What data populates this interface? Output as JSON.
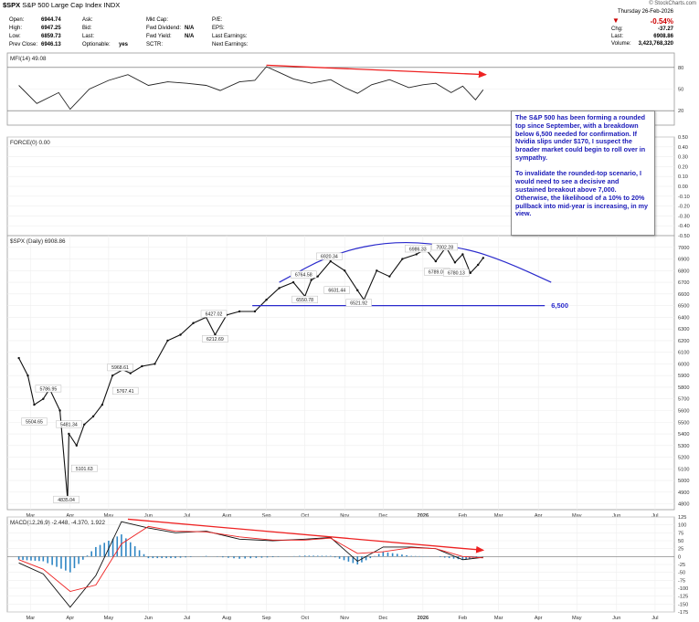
{
  "header": {
    "symbol_line_symbol": "$SPX",
    "symbol_line_desc": "S&P 500 Large Cap Index",
    "symbol_line_exchange": "INDX",
    "copyright": "© StockCharts.com",
    "left_labels": [
      "Open:",
      "High:",
      "Low:",
      "Prev Close:"
    ],
    "left_values": [
      "6944.74",
      "6947.25",
      "6859.73",
      "6946.13"
    ],
    "mid_labels": [
      "Ask:",
      "Bid:",
      "Last:",
      "Optionable:"
    ],
    "mid_values": [
      "",
      "",
      "",
      "yes"
    ],
    "fund_labels": [
      "Mkt Cap:",
      "Fwd Dividend:",
      "Fwd Yield:",
      "SCTR:"
    ],
    "fund_values": [
      "",
      "N/A",
      "N/A",
      ""
    ],
    "earn_labels": [
      "P/E:",
      "EPS:",
      "Last Earnings:",
      "Next Earnings:"
    ],
    "date": "Thursday 26-Feb-2026",
    "change_pct": "-0.54%",
    "chg_label": "Chg:",
    "chg_value": "-37.27",
    "last_label": "Last:",
    "last_value": "6908.86",
    "volume_label": "Volume:",
    "volume_value": "3,423,768,320",
    "down_color": "#cc0000"
  },
  "note": {
    "text": "The S&P 500 has been forming a rounded top since September, with a breakdown below 6,500 needed for confirmation. If Nvidia slips under $170, I suspect the broader market could begin to roll over in sympathy.\n\nTo invalidate the rounded-top scenario, I would need to see a decisive and sustained breakout above 7,000. Otherwise, the likelihood of a 10% to 20% pullback into mid-year is increasing, in my view."
  },
  "chart_data": [
    {
      "type": "line",
      "panel": "mfi",
      "title": "MFI(14) 49.08",
      "ylim": [
        0,
        100
      ],
      "y_ticks": [
        20,
        50,
        80
      ],
      "overbought": 80,
      "oversold": 20,
      "series": [
        {
          "color": "#222222",
          "x": [
            "2025-03-01",
            "2025-03-15",
            "2025-04-01",
            "2025-04-10",
            "2025-04-25",
            "2025-05-10",
            "2025-05-25",
            "2025-06-10",
            "2025-06-25",
            "2025-07-10",
            "2025-07-25",
            "2025-08-05",
            "2025-08-20",
            "2025-09-01",
            "2025-09-10",
            "2025-09-20",
            "2025-10-01",
            "2025-10-15",
            "2025-10-30",
            "2025-11-10",
            "2025-11-20",
            "2025-12-01",
            "2025-12-15",
            "2025-12-30",
            "2026-01-10",
            "2026-01-20",
            "2026-02-01",
            "2026-02-10",
            "2026-02-20",
            "2026-02-26"
          ],
          "y": [
            55,
            30,
            45,
            22,
            50,
            62,
            70,
            55,
            60,
            58,
            55,
            48,
            60,
            62,
            81,
            73,
            64,
            58,
            63,
            52,
            44,
            56,
            63,
            52,
            56,
            58,
            45,
            54,
            35,
            49
          ]
        }
      ],
      "trendline": {
        "x": [
          "2025-09-10",
          "2026-02-28"
        ],
        "y": [
          83,
          70
        ],
        "color": "#ee2222"
      }
    },
    {
      "type": "line",
      "panel": "force",
      "title": "FORCE(0) 0.00",
      "ylim": [
        -0.5,
        0.5
      ],
      "y_ticks": [
        "0.50",
        "0.40",
        "0.30",
        "0.20",
        "0.10",
        "0.00",
        "-0.10",
        "-0.20",
        "-0.30",
        "-0.40",
        "-0.50"
      ],
      "series": []
    },
    {
      "type": "line",
      "panel": "price",
      "title": "$SPX (Daily) 6908.86",
      "ylim": [
        4750,
        7100
      ],
      "y_ticks": [
        4800,
        4900,
        5000,
        5100,
        5200,
        5300,
        5400,
        5500,
        5600,
        5700,
        5800,
        5900,
        6000,
        6100,
        6200,
        6300,
        6400,
        6500,
        6600,
        6700,
        6800,
        6900,
        7000
      ],
      "x_ticks": [
        "Mar",
        "Apr",
        "May",
        "Jun",
        "Jul",
        "Aug",
        "Sep",
        "Oct",
        "Nov",
        "Dec",
        "2026",
        "Feb",
        "Mar",
        "Apr",
        "May",
        "Jun",
        "Jul"
      ],
      "series": [
        {
          "name": "$SPX",
          "color": "#111111",
          "x": [
            "2025-03-01",
            "2025-03-08",
            "2025-03-13",
            "2025-03-20",
            "2025-03-25",
            "2025-04-02",
            "2025-04-08",
            "2025-04-09",
            "2025-04-15",
            "2025-04-21",
            "2025-04-28",
            "2025-05-05",
            "2025-05-13",
            "2025-05-21",
            "2025-05-27",
            "2025-06-05",
            "2025-06-15",
            "2025-06-25",
            "2025-07-05",
            "2025-07-15",
            "2025-07-25",
            "2025-08-01",
            "2025-08-10",
            "2025-08-20",
            "2025-09-01",
            "2025-09-10",
            "2025-09-20",
            "2025-10-01",
            "2025-10-10",
            "2025-10-15",
            "2025-10-20",
            "2025-10-30",
            "2025-11-10",
            "2025-11-20",
            "2025-11-25",
            "2025-12-05",
            "2025-12-15",
            "2025-12-25",
            "2026-01-05",
            "2026-01-12",
            "2026-01-20",
            "2026-01-28",
            "2026-02-04",
            "2026-02-10",
            "2026-02-16",
            "2026-02-22",
            "2026-02-26"
          ],
          "y": [
            6050,
            5900,
            5650,
            5700,
            5785,
            5600,
            4835,
            5400,
            5300,
            5480,
            5550,
            5650,
            5900,
            5950,
            5920,
            5980,
            6000,
            6200,
            6250,
            6350,
            6400,
            6250,
            6420,
            6450,
            6450,
            6550,
            6650,
            6700,
            6580,
            6720,
            6750,
            6880,
            6800,
            6631,
            6550,
            6800,
            6750,
            6900,
            6940,
            6986,
            6880,
            7002,
            6870,
            6940,
            6780,
            6850,
            6908.86
          ]
        }
      ],
      "annotations": [
        {
          "x": "2025-03-13",
          "y": 5504.65,
          "text": "5504.65"
        },
        {
          "x": "2025-03-24",
          "y": 5786.95,
          "text": "5786.95"
        },
        {
          "x": "2025-04-09",
          "y": 5481.34,
          "text": "5481.34"
        },
        {
          "x": "2025-04-07",
          "y": 4835.04,
          "text": "4835.04"
        },
        {
          "x": "2025-04-21",
          "y": 5101.63,
          "text": "5101.63"
        },
        {
          "x": "2025-05-19",
          "y": 5968.61,
          "text": "5968.61"
        },
        {
          "x": "2025-05-23",
          "y": 5767.41,
          "text": "5767.41"
        },
        {
          "x": "2025-07-31",
          "y": 6427.02,
          "text": "6427.02"
        },
        {
          "x": "2025-08-01",
          "y": 6212.69,
          "text": "6212.69"
        },
        {
          "x": "2025-10-10",
          "y": 6550.78,
          "text": "6550.78"
        },
        {
          "x": "2025-10-09",
          "y": 6764.58,
          "text": "6764.58"
        },
        {
          "x": "2025-10-29",
          "y": 6920.34,
          "text": "6920.34"
        },
        {
          "x": "2025-11-04",
          "y": 6631.44,
          "text": "6631.44"
        },
        {
          "x": "2025-11-21",
          "y": 6521.92,
          "text": "6521.92"
        },
        {
          "x": "2026-01-06",
          "y": 6986.33,
          "text": "6986.33"
        },
        {
          "x": "2026-01-27",
          "y": 7002.28,
          "text": "7002.28"
        },
        {
          "x": "2026-01-21",
          "y": 6789.05,
          "text": "6789.05"
        },
        {
          "x": "2026-02-05",
          "y": 6780.13,
          "text": "6780.13"
        }
      ],
      "support_level": {
        "y": 6500,
        "label": "6,500",
        "color": "#2a2acc"
      },
      "rounded_top_arc": {
        "color": "#2a2acc",
        "points": [
          [
            "2025-09-20",
            6700
          ],
          [
            "2025-11-01",
            6950
          ],
          [
            "2025-12-20",
            7060
          ],
          [
            "2026-02-10",
            7000
          ],
          [
            "2026-03-15",
            6880
          ],
          [
            "2026-04-20",
            6700
          ]
        ]
      }
    },
    {
      "type": "line",
      "panel": "macd",
      "title": "MACD(12,26,9) -2.448, -4.370, 1.922",
      "ylim": [
        -175,
        125
      ],
      "y_ticks": [
        125,
        100,
        75,
        50,
        25,
        0,
        -25,
        -50,
        -75,
        -100,
        -125,
        -150,
        -175
      ],
      "x_ticks": [
        "Mar",
        "Apr",
        "May",
        "Jun",
        "Jul",
        "Aug",
        "Sep",
        "Oct",
        "Nov",
        "Dec",
        "2026",
        "Feb",
        "Mar",
        "Apr",
        "May",
        "Jun",
        "Jul"
      ],
      "series": [
        {
          "name": "MACD",
          "color": "#111111",
          "x": [
            "2025-03-01",
            "2025-03-20",
            "2025-04-10",
            "2025-04-30",
            "2025-05-20",
            "2025-06-10",
            "2025-07-01",
            "2025-07-25",
            "2025-08-20",
            "2025-09-15",
            "2025-10-10",
            "2025-10-30",
            "2025-11-20",
            "2025-12-10",
            "2026-01-01",
            "2026-01-20",
            "2026-02-10",
            "2026-02-26"
          ],
          "y": [
            -20,
            -55,
            -160,
            -60,
            110,
            90,
            75,
            80,
            55,
            50,
            55,
            60,
            -15,
            30,
            30,
            25,
            -10,
            -2.448
          ]
        },
        {
          "name": "Signal",
          "color": "#ee2222",
          "x": [
            "2025-03-01",
            "2025-03-20",
            "2025-04-10",
            "2025-04-30",
            "2025-05-20",
            "2025-06-10",
            "2025-07-01",
            "2025-07-25",
            "2025-08-20",
            "2025-09-15",
            "2025-10-10",
            "2025-10-30",
            "2025-11-20",
            "2025-12-10",
            "2026-01-01",
            "2026-01-20",
            "2026-02-10",
            "2026-02-26"
          ],
          "y": [
            -10,
            -40,
            -110,
            -90,
            40,
            95,
            80,
            78,
            62,
            52,
            52,
            58,
            10,
            15,
            28,
            25,
            0,
            -4.37
          ]
        }
      ],
      "trendline": {
        "x": [
          "2025-05-25",
          "2026-02-26"
        ],
        "y": [
          118,
          20
        ],
        "color": "#ee2222"
      }
    }
  ]
}
